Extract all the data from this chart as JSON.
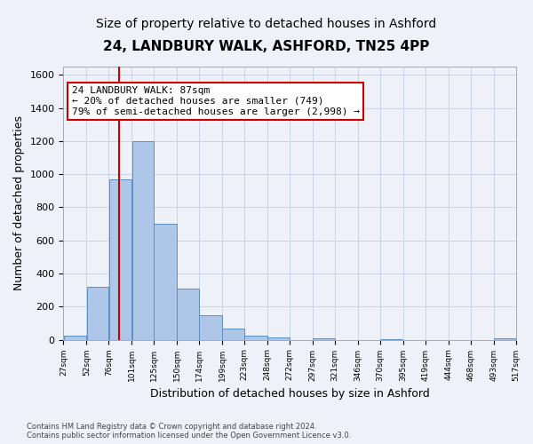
{
  "title": "24, LANDBURY WALK, ASHFORD, TN25 4PP",
  "subtitle": "Size of property relative to detached houses in Ashford",
  "xlabel": "Distribution of detached houses by size in Ashford",
  "ylabel": "Number of detached properties",
  "bar_edges": [
    27,
    52,
    76,
    101,
    125,
    150,
    174,
    199,
    223,
    248,
    272,
    297,
    321,
    346,
    370,
    395,
    419,
    444,
    468,
    493,
    517
  ],
  "bar_heights": [
    25,
    320,
    970,
    1200,
    700,
    310,
    150,
    65,
    25,
    15,
    0,
    10,
    0,
    0,
    5,
    0,
    0,
    0,
    0,
    10
  ],
  "bar_color": "#aec6e8",
  "bar_edge_color": "#5a8fc2",
  "property_size": 87,
  "property_line_color": "#cc0000",
  "annotation_line1": "24 LANDBURY WALK: 87sqm",
  "annotation_line2": "← 20% of detached houses are smaller (749)",
  "annotation_line3": "79% of semi-detached houses are larger (2,998) →",
  "annotation_box_color": "#ffffff",
  "annotation_box_edge_color": "#cc0000",
  "ylim": [
    0,
    1650
  ],
  "yticks": [
    0,
    200,
    400,
    600,
    800,
    1000,
    1200,
    1400,
    1600
  ],
  "footer_text": "Contains HM Land Registry data © Crown copyright and database right 2024.\nContains public sector information licensed under the Open Government Licence v3.0.",
  "background_color": "#eef2f8",
  "plot_background_color": "#eef2f8",
  "grid_color": "#c8d4e8",
  "title_fontsize": 11,
  "subtitle_fontsize": 10,
  "xlabel_fontsize": 9,
  "ylabel_fontsize": 9,
  "annotation_fontsize": 8
}
